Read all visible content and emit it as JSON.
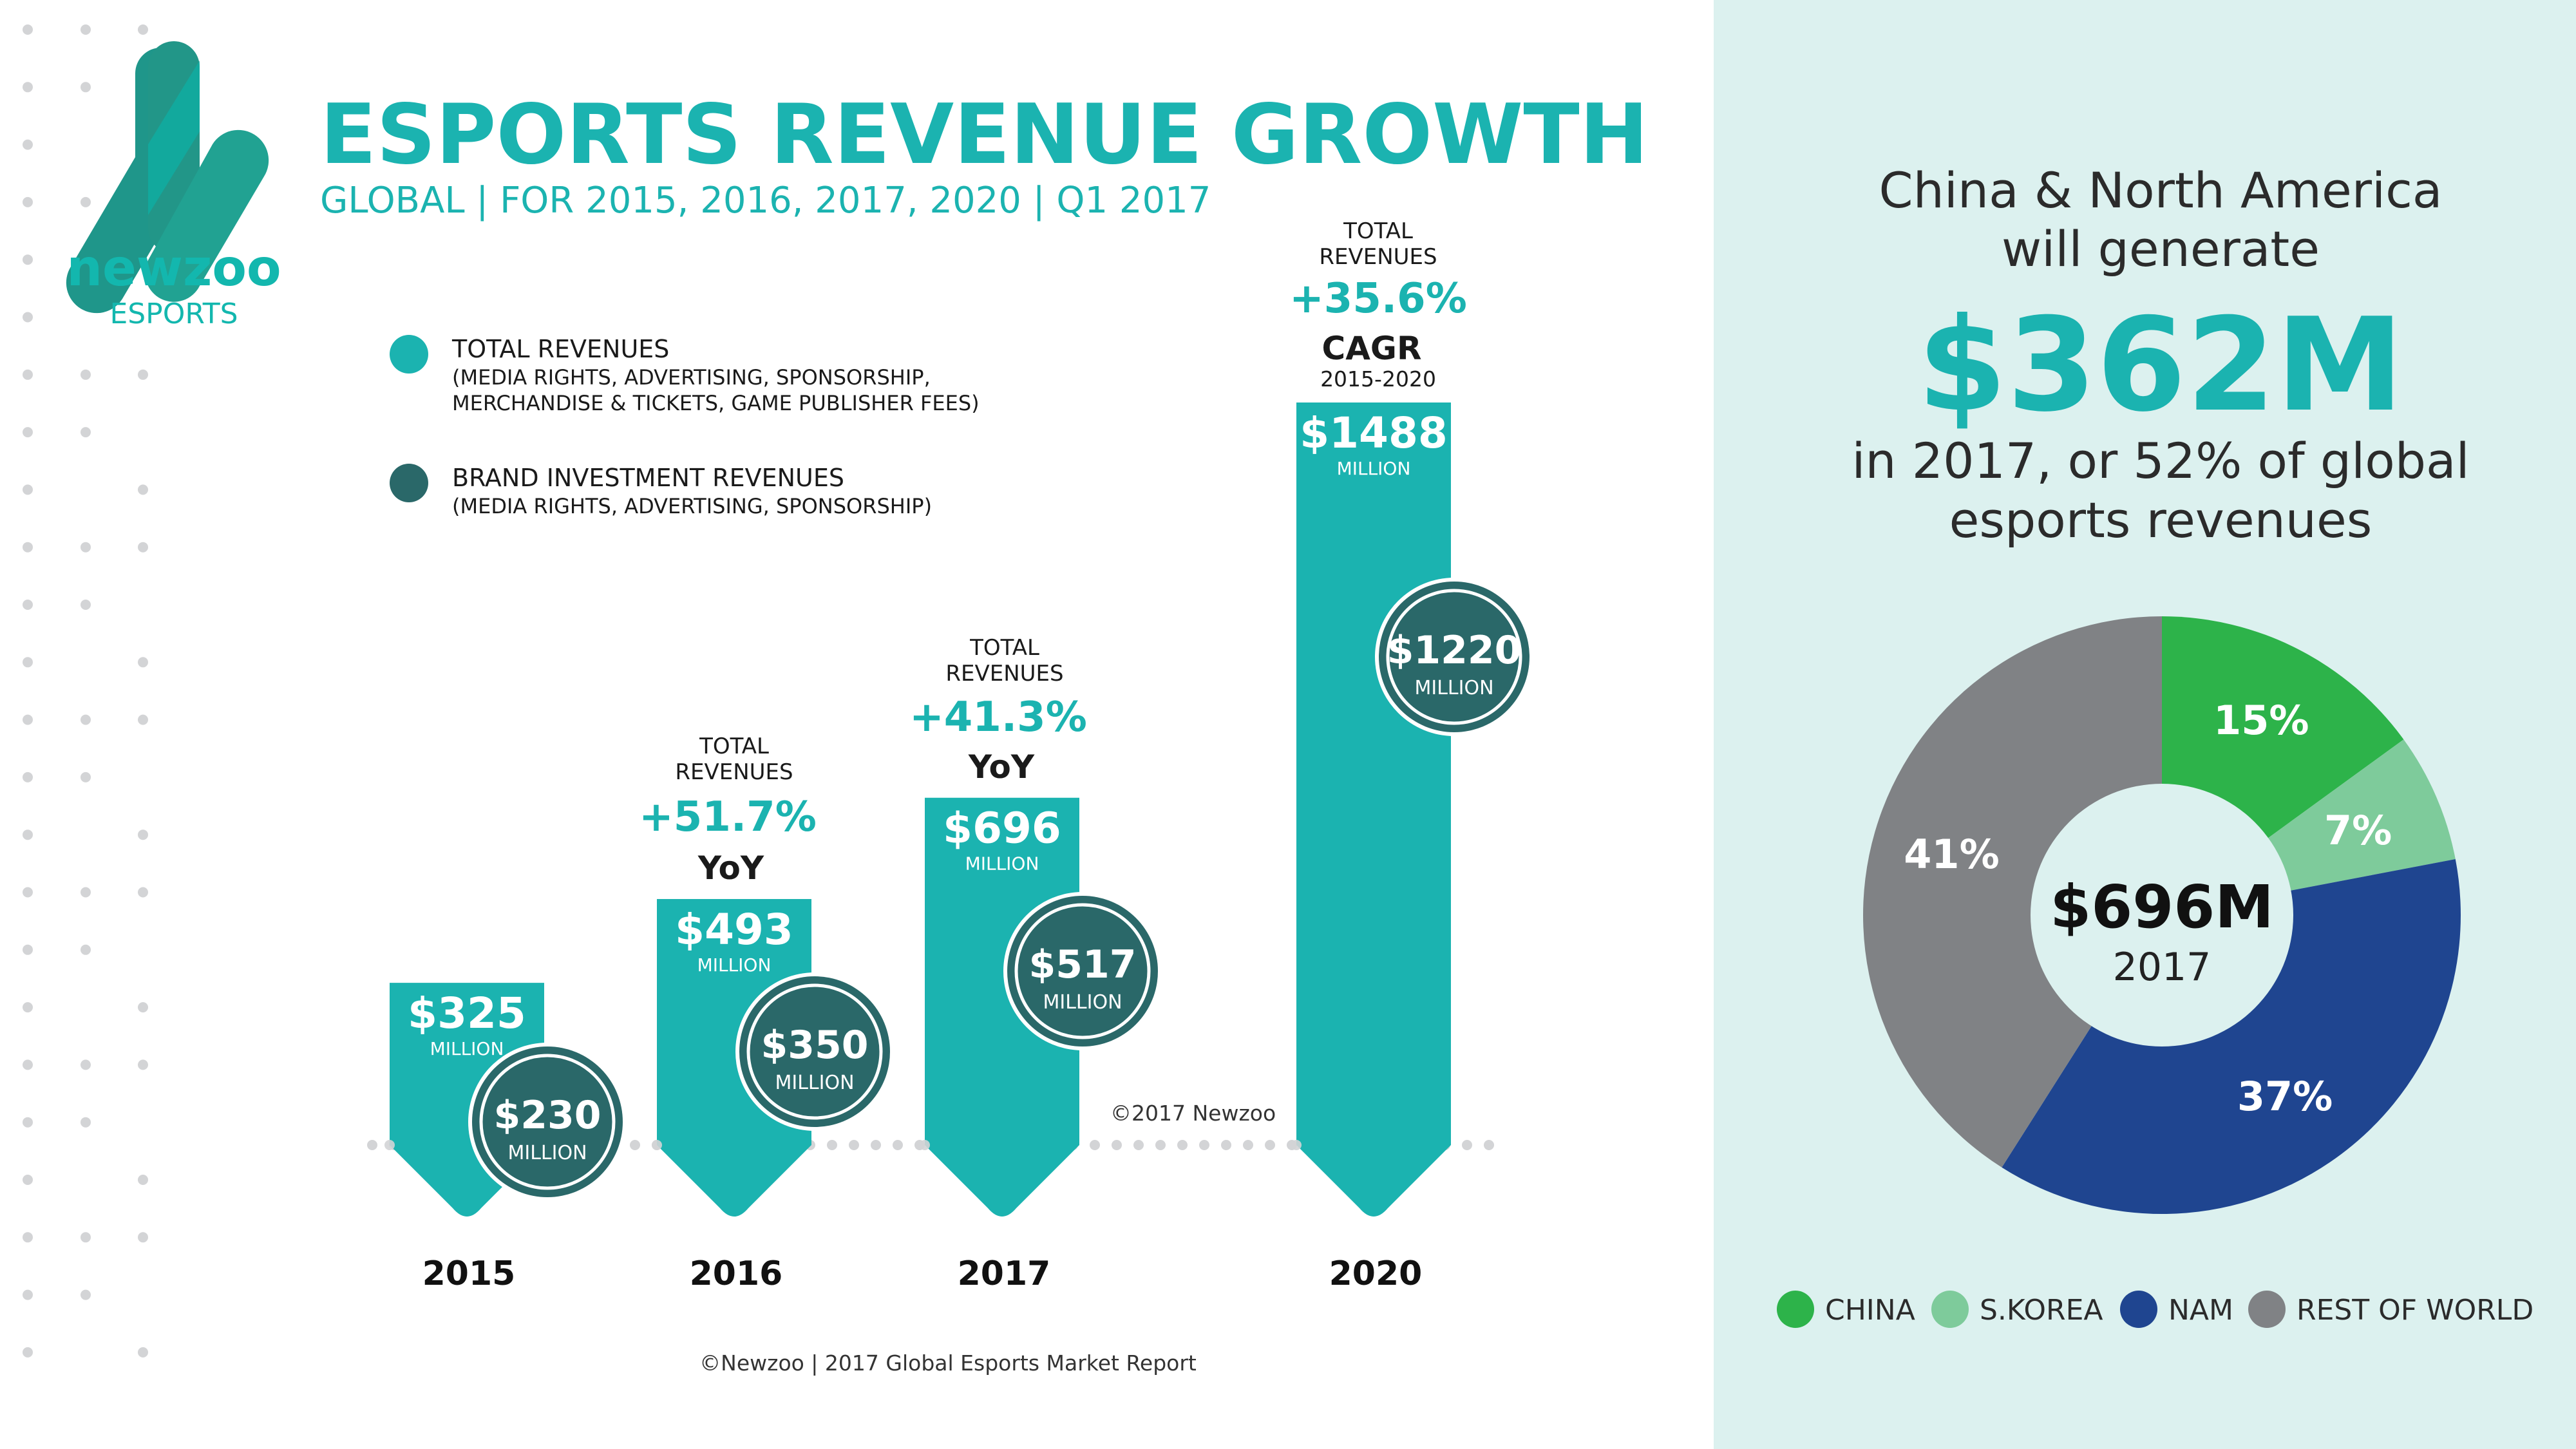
{
  "colors": {
    "teal": "#1bb3b0",
    "dark_teal": "#2a6869",
    "panel_bg": "#dcf1ef",
    "text": "#1a1a1a",
    "dots": "#d3d4d6"
  },
  "logo": {
    "wordmark": "newzoo",
    "sub": "ESPORTS"
  },
  "header": {
    "title": "ESPORTS REVENUE GROWTH",
    "subtitle": "GLOBAL | FOR 2015, 2016, 2017, 2020 | Q1 2017"
  },
  "legend": [
    {
      "label": "TOTAL REVENUES",
      "detail1": "(MEDIA RIGHTS, ADVERTISING, SPONSORSHIP,",
      "detail2": "MERCHANDISE & TICKETS, GAME PUBLISHER FEES)"
    },
    {
      "label": "BRAND INVESTMENT REVENUES",
      "detail1": "(MEDIA RIGHTS, ADVERTISING, SPONSORSHIP)"
    }
  ],
  "unit": "MILLION",
  "annotations": [
    {
      "line1": "TOTAL",
      "line2": "REVENUES",
      "growth": "+51.7%",
      "type": "YoY"
    },
    {
      "line1": "TOTAL",
      "line2": "REVENUES",
      "growth": "+41.3%",
      "type": "YoY"
    },
    {
      "line1": "TOTAL",
      "line2": "REVENUES",
      "growth": "+35.6%",
      "type": "CAGR",
      "period": "2015-2020"
    }
  ],
  "chart_copyright": "©2017 Newzoo",
  "footer": "©Newzoo | 2017 Global Esports Market Report",
  "chart_data": [
    {
      "type": "bar",
      "categories": [
        "2015",
        "2016",
        "2017",
        "2020"
      ],
      "series": [
        {
          "name": "TOTAL REVENUES",
          "values": [
            325,
            493,
            696,
            1488
          ],
          "labels": [
            "$325",
            "$493",
            "$696",
            "$1488"
          ]
        },
        {
          "name": "BRAND INVESTMENT REVENUES",
          "values": [
            230,
            350,
            517,
            1220
          ],
          "labels": [
            "$230",
            "$350",
            "$517",
            "$1220"
          ]
        }
      ],
      "unit": "MILLION"
    },
    {
      "type": "pie",
      "headline": {
        "line1": "China & North America",
        "line2": "will generate",
        "big": "$362M",
        "line3": "in 2017, or 52% of global",
        "line4": "esports revenues"
      },
      "center_value": "$696M",
      "center_label": "2017",
      "slices": [
        {
          "name": "CHINA",
          "value": 15,
          "label": "15%",
          "color": "#2db34a"
        },
        {
          "name": "S.KOREA",
          "value": 7,
          "label": "7%",
          "color": "#7ecb9b"
        },
        {
          "name": "NAM",
          "value": 37,
          "label": "37%",
          "color": "#1f4590"
        },
        {
          "name": "REST OF WORLD",
          "value": 41,
          "label": "41%",
          "color": "#808285"
        }
      ]
    }
  ]
}
